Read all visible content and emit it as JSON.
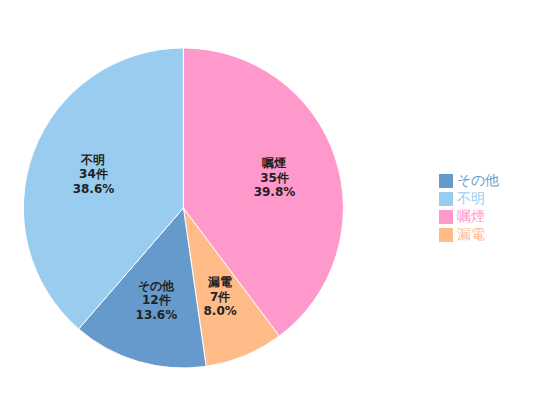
{
  "chart_data": {
    "type": "pie",
    "categories": [
      "嘱煙",
      "漏電",
      "その他",
      "不明"
    ],
    "values": [
      35,
      7,
      12,
      34
    ],
    "value_labels": [
      "35件",
      "7件",
      "12件",
      "34件"
    ],
    "percentages": [
      39.8,
      8.0,
      13.6,
      38.6
    ],
    "percentage_labels": [
      "39.8%",
      "8.0%",
      "13.6%",
      "38.6%"
    ],
    "colors": [
      "#FF99CC",
      "#FFBB88",
      "#6699CC",
      "#99CCEE"
    ],
    "data_labels": true,
    "legend": "right"
  }
}
